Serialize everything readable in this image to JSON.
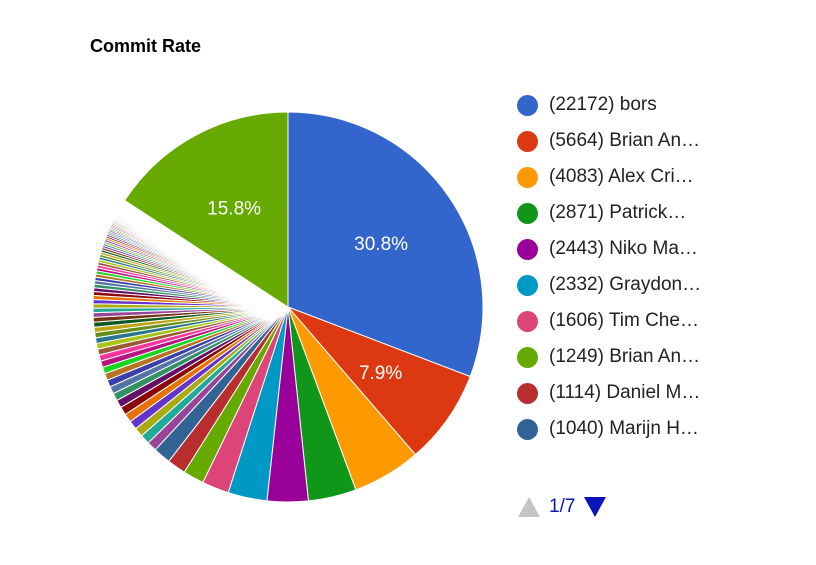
{
  "chart_data": {
    "type": "pie",
    "title": "Commit Rate",
    "legend_position": "right",
    "slices": [
      {
        "label": "(22172) bors",
        "value": 22172,
        "percent_label": "30.8%",
        "color": "#3366cc"
      },
      {
        "label": "(5664) Brian An…",
        "value": 5664,
        "percent_label": "7.9%",
        "color": "#dc3912"
      },
      {
        "label": "(4083) Alex Cri…",
        "value": 4083,
        "percent_label": "",
        "color": "#ff9900"
      },
      {
        "label": "(2871) Patrick…",
        "value": 2871,
        "percent_label": "",
        "color": "#109618"
      },
      {
        "label": "(2443) Niko Ma…",
        "value": 2443,
        "percent_label": "",
        "color": "#990099"
      },
      {
        "label": "(2332) Graydon…",
        "value": 2332,
        "percent_label": "",
        "color": "#0099c6"
      },
      {
        "label": "(1606) Tim Che…",
        "value": 1606,
        "percent_label": "",
        "color": "#dd4477"
      },
      {
        "label": "(1249) Brian An…",
        "value": 1249,
        "percent_label": "",
        "color": "#66aa00"
      },
      {
        "label": "(1114) Daniel M…",
        "value": 1114,
        "percent_label": "",
        "color": "#b82e2e"
      },
      {
        "label": "(1040) Marijn H…",
        "value": 1040,
        "percent_label": "",
        "color": "#316395"
      }
    ],
    "additional_small_slice_colors": [
      "#994499",
      "#22aa99",
      "#aaaa11",
      "#6633cc",
      "#e67300",
      "#8b0707",
      "#651067",
      "#329262",
      "#5574a6",
      "#3b3eac",
      "#b77322",
      "#16d620",
      "#b91383",
      "#f4359e",
      "#9c5935",
      "#a9c413",
      "#2a778d",
      "#668d1c",
      "#bea413",
      "#0c5922",
      "#743411"
    ],
    "other_slice": {
      "percent_label": "15.8%",
      "color": "#66aa00"
    },
    "pager": {
      "label": "1/7"
    }
  }
}
